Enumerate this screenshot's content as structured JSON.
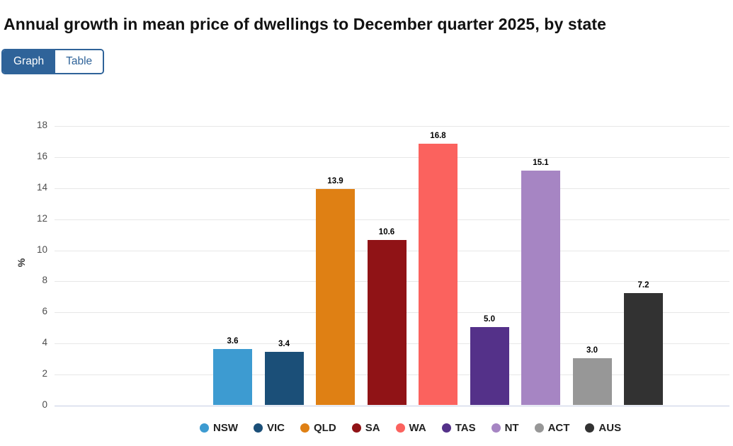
{
  "title": "Annual growth in mean price of dwellings to December quarter 2025, by state",
  "toggle": {
    "graph_label": "Graph",
    "table_label": "Table",
    "selected": "Graph"
  },
  "colors": {
    "accent_blue": "#2f6399"
  },
  "chart_data": {
    "type": "bar",
    "title": "Annual growth in mean price of dwellings to December quarter 2025, by state",
    "categories": [
      "NSW",
      "VIC",
      "QLD",
      "SA",
      "WA",
      "TAS",
      "NT",
      "ACT",
      "AUS"
    ],
    "values": [
      3.6,
      3.4,
      13.9,
      10.6,
      16.8,
      5.0,
      15.1,
      3.0,
      7.2
    ],
    "value_labels": [
      "3.6",
      "3.4",
      "13.9",
      "10.6",
      "16.8",
      "5.0",
      "15.1",
      "3.0",
      "7.2"
    ],
    "colors": [
      "#3d9bd1",
      "#1b4f78",
      "#df8014",
      "#901316",
      "#fb625e",
      "#543189",
      "#a685c3",
      "#979797",
      "#323232"
    ],
    "xlabel": "",
    "ylabel": "%",
    "ylim": [
      0,
      18
    ],
    "ytick_step": 2,
    "grid": true,
    "legend_position": "bottom"
  }
}
